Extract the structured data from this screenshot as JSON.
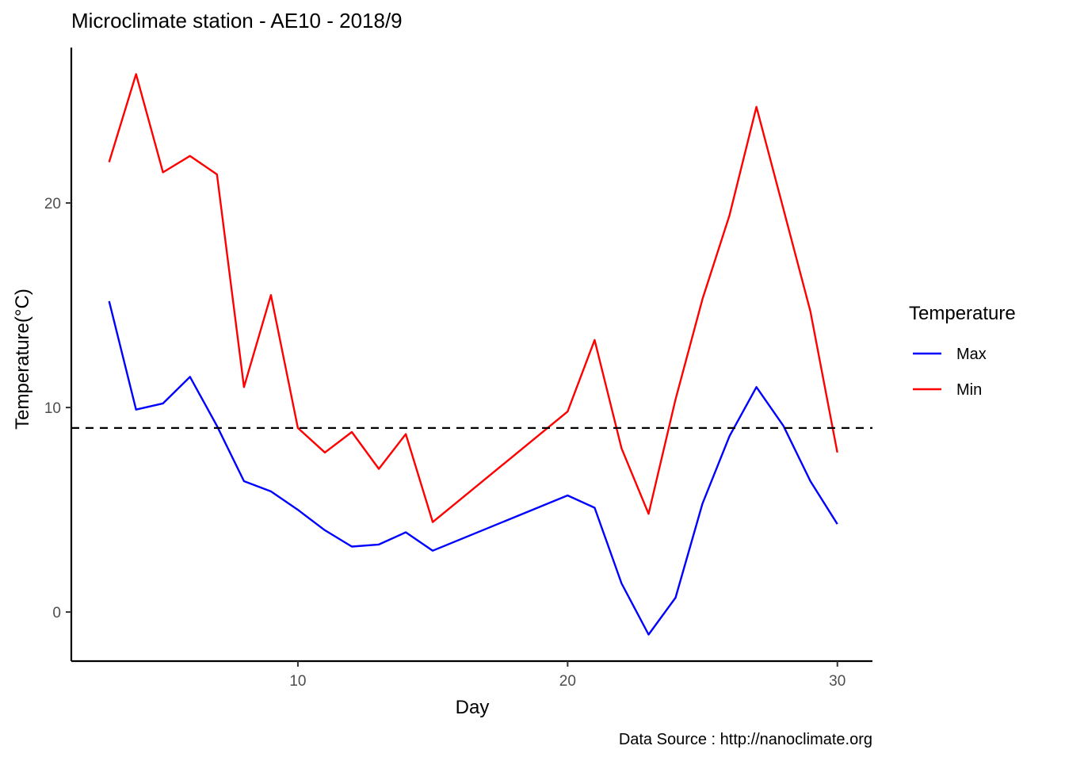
{
  "chart_data": {
    "type": "line",
    "title": "Microclimate station -  AE10 - 2018/9",
    "xlabel": "Day",
    "ylabel": "Temperature(°C)",
    "caption": "Data Source : http://nanoclimate.org",
    "xlim": [
      1.6,
      31.3
    ],
    "ylim": [
      -2.4,
      27.6
    ],
    "x_ticks": [
      10,
      20,
      30
    ],
    "y_ticks": [
      0,
      10,
      20
    ],
    "reference_line": 9,
    "grid": false,
    "legend": {
      "title": "Temperature",
      "position": "right"
    },
    "x": [
      3,
      4,
      5,
      6,
      7,
      8,
      9,
      10,
      11,
      12,
      13,
      14,
      15,
      20,
      21,
      22,
      23,
      24,
      25,
      26,
      27,
      28,
      29,
      30
    ],
    "series": [
      {
        "name": "Max",
        "color": "#0000ff",
        "values": [
          15.2,
          9.9,
          10.2,
          11.5,
          9.1,
          6.4,
          5.9,
          5.0,
          4.0,
          3.2,
          3.3,
          3.9,
          3.0,
          5.7,
          5.1,
          1.4,
          -1.1,
          0.7,
          5.3,
          8.6,
          11.0,
          9.1,
          6.4,
          4.3
        ]
      },
      {
        "name": "Min",
        "color": "#ff0000",
        "values": [
          22.0,
          26.3,
          21.5,
          22.3,
          21.4,
          11.0,
          15.5,
          9.0,
          7.8,
          8.8,
          7.0,
          8.7,
          4.4,
          9.8,
          13.3,
          8.0,
          4.8,
          10.4,
          15.3,
          19.4,
          24.7,
          19.7,
          14.7,
          7.8
        ]
      }
    ]
  }
}
